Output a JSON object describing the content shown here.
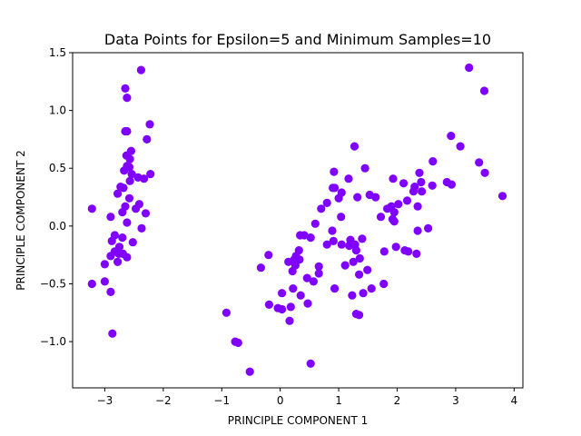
{
  "chart_data": {
    "type": "scatter",
    "title": "Data Points for Epsilon=5 and Minimum Samples=10",
    "xlabel": "PRINCIPLE COMPONENT 1",
    "ylabel": "PRINCIPLE COMPONENT 2",
    "xlim": [
      -3.55,
      4.15
    ],
    "ylim": [
      -1.4,
      1.5
    ],
    "xticks": [
      -3,
      -2,
      -1,
      0,
      1,
      2,
      3,
      4
    ],
    "xtick_labels": [
      "−3",
      "−2",
      "−1",
      "0",
      "1",
      "2",
      "3",
      "4"
    ],
    "yticks": [
      -1.0,
      -0.5,
      0.0,
      0.5,
      1.0,
      1.5
    ],
    "ytick_labels": [
      "−1.0",
      "−0.5",
      "0.0",
      "0.5",
      "1.0",
      "1.5"
    ],
    "grid": false,
    "legend": null,
    "marker_color": "#8000ff",
    "points": [
      [
        -2.38,
        1.35
      ],
      [
        -2.65,
        1.19
      ],
      [
        -2.62,
        1.11
      ],
      [
        -2.65,
        0.82
      ],
      [
        -2.62,
        0.82
      ],
      [
        -2.23,
        0.88
      ],
      [
        -2.28,
        0.75
      ],
      [
        -2.55,
        0.65
      ],
      [
        -2.63,
        0.61
      ],
      [
        -2.57,
        0.58
      ],
      [
        -2.62,
        0.52
      ],
      [
        -2.58,
        0.51
      ],
      [
        -2.67,
        0.48
      ],
      [
        -2.54,
        0.45
      ],
      [
        -2.22,
        0.45
      ],
      [
        -2.43,
        0.42
      ],
      [
        -2.33,
        0.41
      ],
      [
        -2.57,
        0.39
      ],
      [
        -2.73,
        0.34
      ],
      [
        -2.68,
        0.33
      ],
      [
        -2.78,
        0.28
      ],
      [
        -2.58,
        0.24
      ],
      [
        -2.47,
        0.15
      ],
      [
        -2.41,
        0.19
      ],
      [
        -2.65,
        0.17
      ],
      [
        -2.7,
        0.12
      ],
      [
        -2.3,
        0.11
      ],
      [
        -3.22,
        0.15
      ],
      [
        -2.9,
        0.08
      ],
      [
        -2.62,
        0.03
      ],
      [
        -2.37,
        -0.02
      ],
      [
        -2.83,
        -0.08
      ],
      [
        -2.7,
        -0.1
      ],
      [
        -2.88,
        -0.13
      ],
      [
        -2.52,
        -0.14
      ],
      [
        -2.75,
        -0.18
      ],
      [
        -2.83,
        -0.22
      ],
      [
        -2.76,
        -0.24
      ],
      [
        -2.69,
        -0.24
      ],
      [
        -2.9,
        -0.26
      ],
      [
        -2.62,
        -0.27
      ],
      [
        -2.78,
        -0.31
      ],
      [
        -3.0,
        -0.33
      ],
      [
        -3.22,
        -0.5
      ],
      [
        -3.0,
        -0.48
      ],
      [
        -2.9,
        -0.57
      ],
      [
        -2.87,
        -0.93
      ],
      [
        3.23,
        1.37
      ],
      [
        3.49,
        1.17
      ],
      [
        2.92,
        0.78
      ],
      [
        3.08,
        0.69
      ],
      [
        1.27,
        0.69
      ],
      [
        3.4,
        0.55
      ],
      [
        2.61,
        0.56
      ],
      [
        1.45,
        0.5
      ],
      [
        0.92,
        0.47
      ],
      [
        2.38,
        0.46
      ],
      [
        3.5,
        0.46
      ],
      [
        1.17,
        0.41
      ],
      [
        1.93,
        0.41
      ],
      [
        2.11,
        0.37
      ],
      [
        2.41,
        0.38
      ],
      [
        2.85,
        0.38
      ],
      [
        2.93,
        0.36
      ],
      [
        2.6,
        0.35
      ],
      [
        2.3,
        0.34
      ],
      [
        0.93,
        0.33
      ],
      [
        0.9,
        0.33
      ],
      [
        2.42,
        0.3
      ],
      [
        2.28,
        0.3
      ],
      [
        1.05,
        0.29
      ],
      [
        1.53,
        0.27
      ],
      [
        1.63,
        0.25
      ],
      [
        1.32,
        0.25
      ],
      [
        1.0,
        0.24
      ],
      [
        3.8,
        0.26
      ],
      [
        2.17,
        0.22
      ],
      [
        2.02,
        0.19
      ],
      [
        0.8,
        0.2
      ],
      [
        1.9,
        0.17
      ],
      [
        1.83,
        0.15
      ],
      [
        2.35,
        0.17
      ],
      [
        0.7,
        0.15
      ],
      [
        1.95,
        0.12
      ],
      [
        1.72,
        0.08
      ],
      [
        1.04,
        0.08
      ],
      [
        1.95,
        0.04
      ],
      [
        0.6,
        0.02
      ],
      [
        1.92,
        0.06
      ],
      [
        0.89,
        -0.04
      ],
      [
        2.35,
        -0.04
      ],
      [
        2.53,
        -0.02
      ],
      [
        0.41,
        -0.08
      ],
      [
        0.34,
        -0.08
      ],
      [
        1.2,
        -0.12
      ],
      [
        1.4,
        -0.11
      ],
      [
        0.91,
        -0.13
      ],
      [
        0.52,
        -0.1
      ],
      [
        1.05,
        -0.16
      ],
      [
        1.18,
        -0.17
      ],
      [
        1.28,
        -0.16
      ],
      [
        0.8,
        -0.16
      ],
      [
        1.98,
        -0.18
      ],
      [
        2.13,
        -0.21
      ],
      [
        2.19,
        -0.22
      ],
      [
        0.32,
        -0.21
      ],
      [
        1.3,
        -0.21
      ],
      [
        1.78,
        -0.22
      ],
      [
        -0.2,
        -0.25
      ],
      [
        2.33,
        -0.24
      ],
      [
        0.27,
        -0.26
      ],
      [
        0.33,
        -0.29
      ],
      [
        1.36,
        -0.28
      ],
      [
        0.24,
        -0.29
      ],
      [
        1.25,
        -0.31
      ],
      [
        0.14,
        -0.31
      ],
      [
        1.11,
        -0.34
      ],
      [
        0.26,
        -0.34
      ],
      [
        0.21,
        -0.39
      ],
      [
        1.49,
        -0.38
      ],
      [
        -0.33,
        -0.36
      ],
      [
        0.66,
        -0.35
      ],
      [
        0.66,
        -0.41
      ],
      [
        1.35,
        -0.42
      ],
      [
        0.57,
        -0.48
      ],
      [
        0.46,
        -0.45
      ],
      [
        1.77,
        -0.5
      ],
      [
        0.22,
        -0.54
      ],
      [
        0.93,
        -0.54
      ],
      [
        1.56,
        -0.54
      ],
      [
        0.03,
        -0.58
      ],
      [
        1.23,
        -0.6
      ],
      [
        1.42,
        -0.58
      ],
      [
        0.35,
        -0.6
      ],
      [
        -0.19,
        -0.68
      ],
      [
        0.47,
        -0.67
      ],
      [
        0.18,
        -0.7
      ],
      [
        -0.04,
        -0.71
      ],
      [
        0.03,
        -0.72
      ],
      [
        1.3,
        -0.76
      ],
      [
        1.35,
        -0.77
      ],
      [
        -0.92,
        -0.75
      ],
      [
        0.16,
        -0.82
      ],
      [
        -0.77,
        -1.0
      ],
      [
        -0.72,
        -1.01
      ],
      [
        0.52,
        -1.19
      ],
      [
        -0.52,
        -1.26
      ]
    ]
  }
}
